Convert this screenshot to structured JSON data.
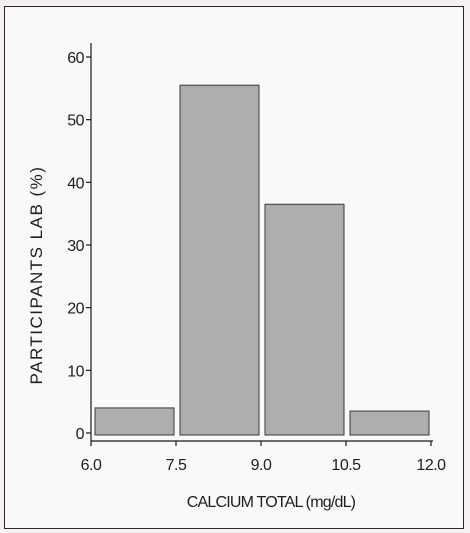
{
  "chart_data": {
    "type": "bar",
    "bins": [
      {
        "start": 6.0,
        "end": 7.5,
        "value": 4
      },
      {
        "start": 7.5,
        "end": 9.0,
        "value": 55.5
      },
      {
        "start": 9.0,
        "end": 10.5,
        "value": 36.5
      },
      {
        "start": 10.5,
        "end": 12.0,
        "value": 3.5
      }
    ],
    "x_ticks": [
      "6.0",
      "7.5",
      "9.0",
      "10.5",
      "12.0"
    ],
    "x_tick_values": [
      6.0,
      7.5,
      9.0,
      10.5,
      12.0
    ],
    "y_ticks": [
      "0",
      "10",
      "20",
      "30",
      "40",
      "50",
      "60"
    ],
    "y_tick_values": [
      0,
      10,
      20,
      30,
      40,
      50,
      60
    ],
    "xlim": [
      6.0,
      12.0
    ],
    "ylim": [
      0,
      60
    ],
    "xlabel": "CALCIUM TOTAL (mg/dL)",
    "ylabel": "PARTICIPANTS LAB (%)",
    "grid": false,
    "colors": {
      "bar": "#b0adad",
      "bar_edge": "#3a3a3a",
      "axis": "#1a1a1a"
    }
  }
}
